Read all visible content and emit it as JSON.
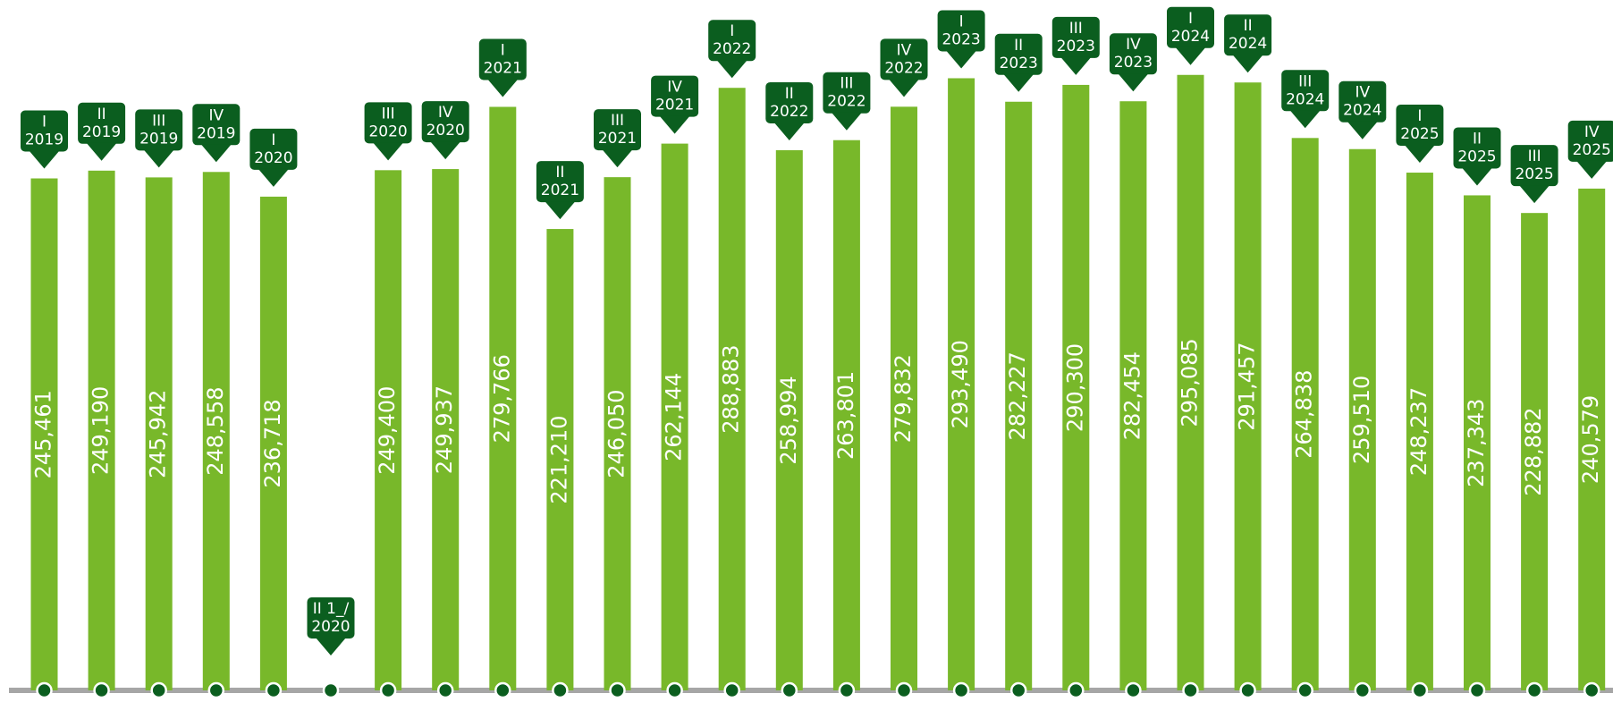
{
  "chart_data": {
    "type": "bar",
    "categories": [
      "I",
      "II",
      "III",
      "IV",
      "I",
      "II 1_/",
      "III",
      "IV",
      "I",
      "II",
      "III",
      "IV",
      "I",
      "II",
      "III",
      "IV",
      "I",
      "II",
      "III",
      "IV",
      "I",
      "II",
      "III",
      "IV",
      "I",
      "II",
      "III",
      "IV"
    ],
    "years": [
      "2019",
      "2019",
      "2019",
      "2019",
      "2020",
      "2020",
      "2020",
      "2020",
      "2021",
      "2021",
      "2021",
      "2021",
      "2022",
      "2022",
      "2022",
      "2022",
      "2023",
      "2023",
      "2023",
      "2023",
      "2024",
      "2024",
      "2024",
      "2024",
      "2025",
      "2025",
      "2025",
      "2025"
    ],
    "values": [
      245461,
      249190,
      245942,
      248558,
      236718,
      null,
      249400,
      249937,
      279766,
      221210,
      246050,
      262144,
      288883,
      258994,
      263801,
      279832,
      293490,
      282227,
      290300,
      282454,
      295085,
      291457,
      264838,
      259510,
      248237,
      237343,
      228882,
      240579
    ],
    "value_labels": [
      "245,461",
      "249,190",
      "245,942",
      "248,558",
      "236,718",
      null,
      "249,400",
      "249,937",
      "279,766",
      "221,210",
      "246,050",
      "262,144",
      "288,883",
      "258,994",
      "263,801",
      "279,832",
      "293,490",
      "282,227",
      "290,300",
      "282,454",
      "295,085",
      "291,457",
      "264,838",
      "259,510",
      "248,237",
      "237,343",
      "228,882",
      "240,579"
    ],
    "color": "#78b82a",
    "label_color": "#0b5e1f",
    "ylim": [
      0,
      331000
    ]
  }
}
